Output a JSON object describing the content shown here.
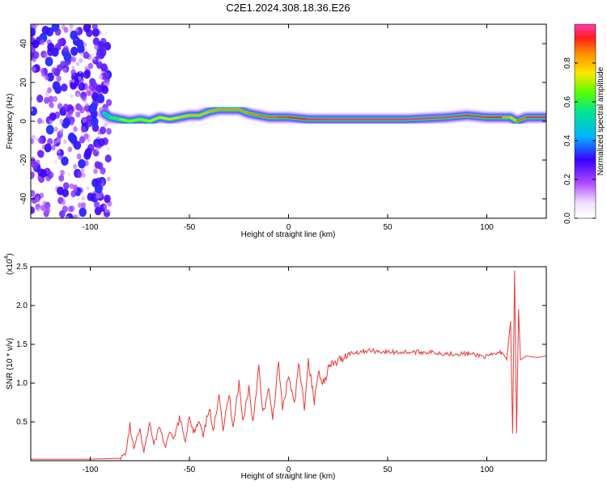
{
  "title": "C2E1.2024.308.18.36.E26",
  "colors": {
    "snr_line": "#e83a3a",
    "axis": "#000000"
  },
  "chart_data": [
    {
      "type": "heatmap",
      "xlabel": "Height of straight line (km)",
      "ylabel": "Frequency (Hz)",
      "xlim": [
        -130,
        130
      ],
      "ylim": [
        -50,
        50
      ],
      "x_ticks": [
        "-100",
        "-50",
        "0",
        "50",
        "100"
      ],
      "y_ticks": [
        "-40",
        "-20",
        "0",
        "20",
        "40"
      ],
      "ridge": {
        "x": [
          -93,
          -90,
          -85,
          -80,
          -75,
          -70,
          -65,
          -60,
          -55,
          -50,
          -45,
          -40,
          -35,
          -30,
          -25,
          -20,
          -15,
          -10,
          -5,
          0,
          10,
          20,
          40,
          60,
          80,
          90,
          100,
          108,
          112,
          115,
          120,
          130
        ],
        "freq_hz": [
          4,
          2,
          1,
          0,
          1,
          0,
          2,
          1,
          2,
          3,
          3,
          5,
          6,
          6,
          6,
          4,
          3,
          2,
          2,
          2,
          1,
          1,
          1,
          1,
          2,
          3,
          2,
          2,
          2,
          0,
          2,
          2
        ],
        "strength": [
          0.35,
          0.5,
          0.65,
          0.7,
          0.65,
          0.7,
          0.72,
          0.75,
          0.78,
          0.8,
          0.8,
          0.82,
          0.85,
          0.85,
          0.85,
          0.85,
          0.88,
          0.88,
          0.9,
          0.92,
          0.95,
          0.97,
          0.97,
          0.97,
          0.97,
          0.96,
          0.95,
          0.9,
          0.75,
          0.8,
          0.95,
          0.95
        ]
      },
      "noise_region_x": [
        -130,
        -90
      ],
      "colorbar": {
        "label": "Normalized spectral amplitude",
        "range": [
          0,
          1
        ],
        "ticks": [
          "0.0",
          "0.2",
          "0.4",
          "0.6",
          "0.8"
        ]
      }
    },
    {
      "type": "line",
      "xlabel": "Height of straight line (km)",
      "ylabel": "SNR (10 * v/v)",
      "y_multiplier_label": "(x10",
      "y_multiplier_exp": "4",
      "y_multiplier_close": ")",
      "xlim": [
        -130,
        130
      ],
      "ylim": [
        0,
        2.5
      ],
      "x_ticks": [
        "-100",
        "-50",
        "0",
        "50",
        "100"
      ],
      "y_ticks": [
        "0.5",
        "1.0",
        "1.5",
        "2.0",
        "2.5"
      ],
      "series": [
        {
          "x": [
            -130,
            -100,
            -85,
            -82,
            -80,
            -78,
            -75,
            -73,
            -70,
            -68,
            -65,
            -62,
            -60,
            -58,
            -55,
            -52,
            -50,
            -48,
            -45,
            -43,
            -40,
            -38,
            -35,
            -33,
            -30,
            -28,
            -25,
            -23,
            -20,
            -18,
            -15,
            -13,
            -10,
            -8,
            -5,
            -3,
            0,
            3,
            5,
            8,
            10,
            13,
            15,
            18,
            20,
            25,
            30,
            35,
            40,
            50,
            60,
            70,
            80,
            90,
            100,
            105,
            108,
            110,
            112,
            113,
            114,
            115,
            116,
            117,
            120,
            125,
            130
          ],
          "y": [
            0.02,
            0.02,
            0.03,
            0.1,
            0.45,
            0.15,
            0.4,
            0.1,
            0.5,
            0.2,
            0.45,
            0.15,
            0.4,
            0.25,
            0.55,
            0.25,
            0.6,
            0.35,
            0.5,
            0.3,
            0.7,
            0.35,
            0.9,
            0.4,
            0.85,
            0.45,
            1.0,
            0.5,
            0.95,
            0.5,
            1.2,
            0.6,
            0.9,
            0.55,
            1.25,
            0.65,
            1.1,
            0.7,
            1.25,
            0.7,
            1.3,
            0.75,
            1.15,
            1.0,
            1.2,
            1.28,
            1.38,
            1.4,
            1.42,
            1.4,
            1.4,
            1.4,
            1.38,
            1.38,
            1.34,
            1.38,
            1.4,
            1.3,
            1.8,
            0.35,
            2.45,
            0.35,
            1.95,
            1.3,
            1.35,
            1.33,
            1.35
          ]
        }
      ]
    }
  ]
}
